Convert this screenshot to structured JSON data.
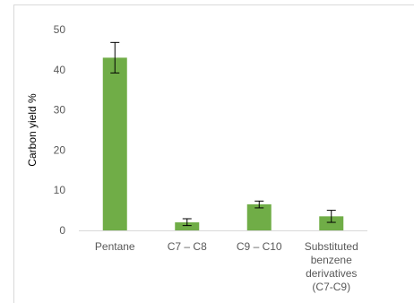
{
  "chart_data": {
    "type": "bar",
    "title": "",
    "xlabel": "",
    "ylabel": "Carbon yield %",
    "ylim": [
      0,
      50
    ],
    "yticks": [
      0,
      10,
      20,
      30,
      40,
      50
    ],
    "grid": false,
    "categories": [
      [
        "Pentane"
      ],
      [
        "C7 – C8"
      ],
      [
        "C9 – C10"
      ],
      [
        "Substituted",
        "benzene",
        "derivatives",
        "(C7-C9)"
      ]
    ],
    "values": [
      43,
      2,
      6.5,
      3.5
    ],
    "error": [
      [
        39.2,
        46.8
      ],
      [
        1.2,
        2.9
      ],
      [
        5.6,
        7.3
      ],
      [
        2.0,
        5.0
      ]
    ],
    "bar_color": "#70ad47",
    "axis_color": "#d9d9d9",
    "tick_color": "#595959"
  }
}
